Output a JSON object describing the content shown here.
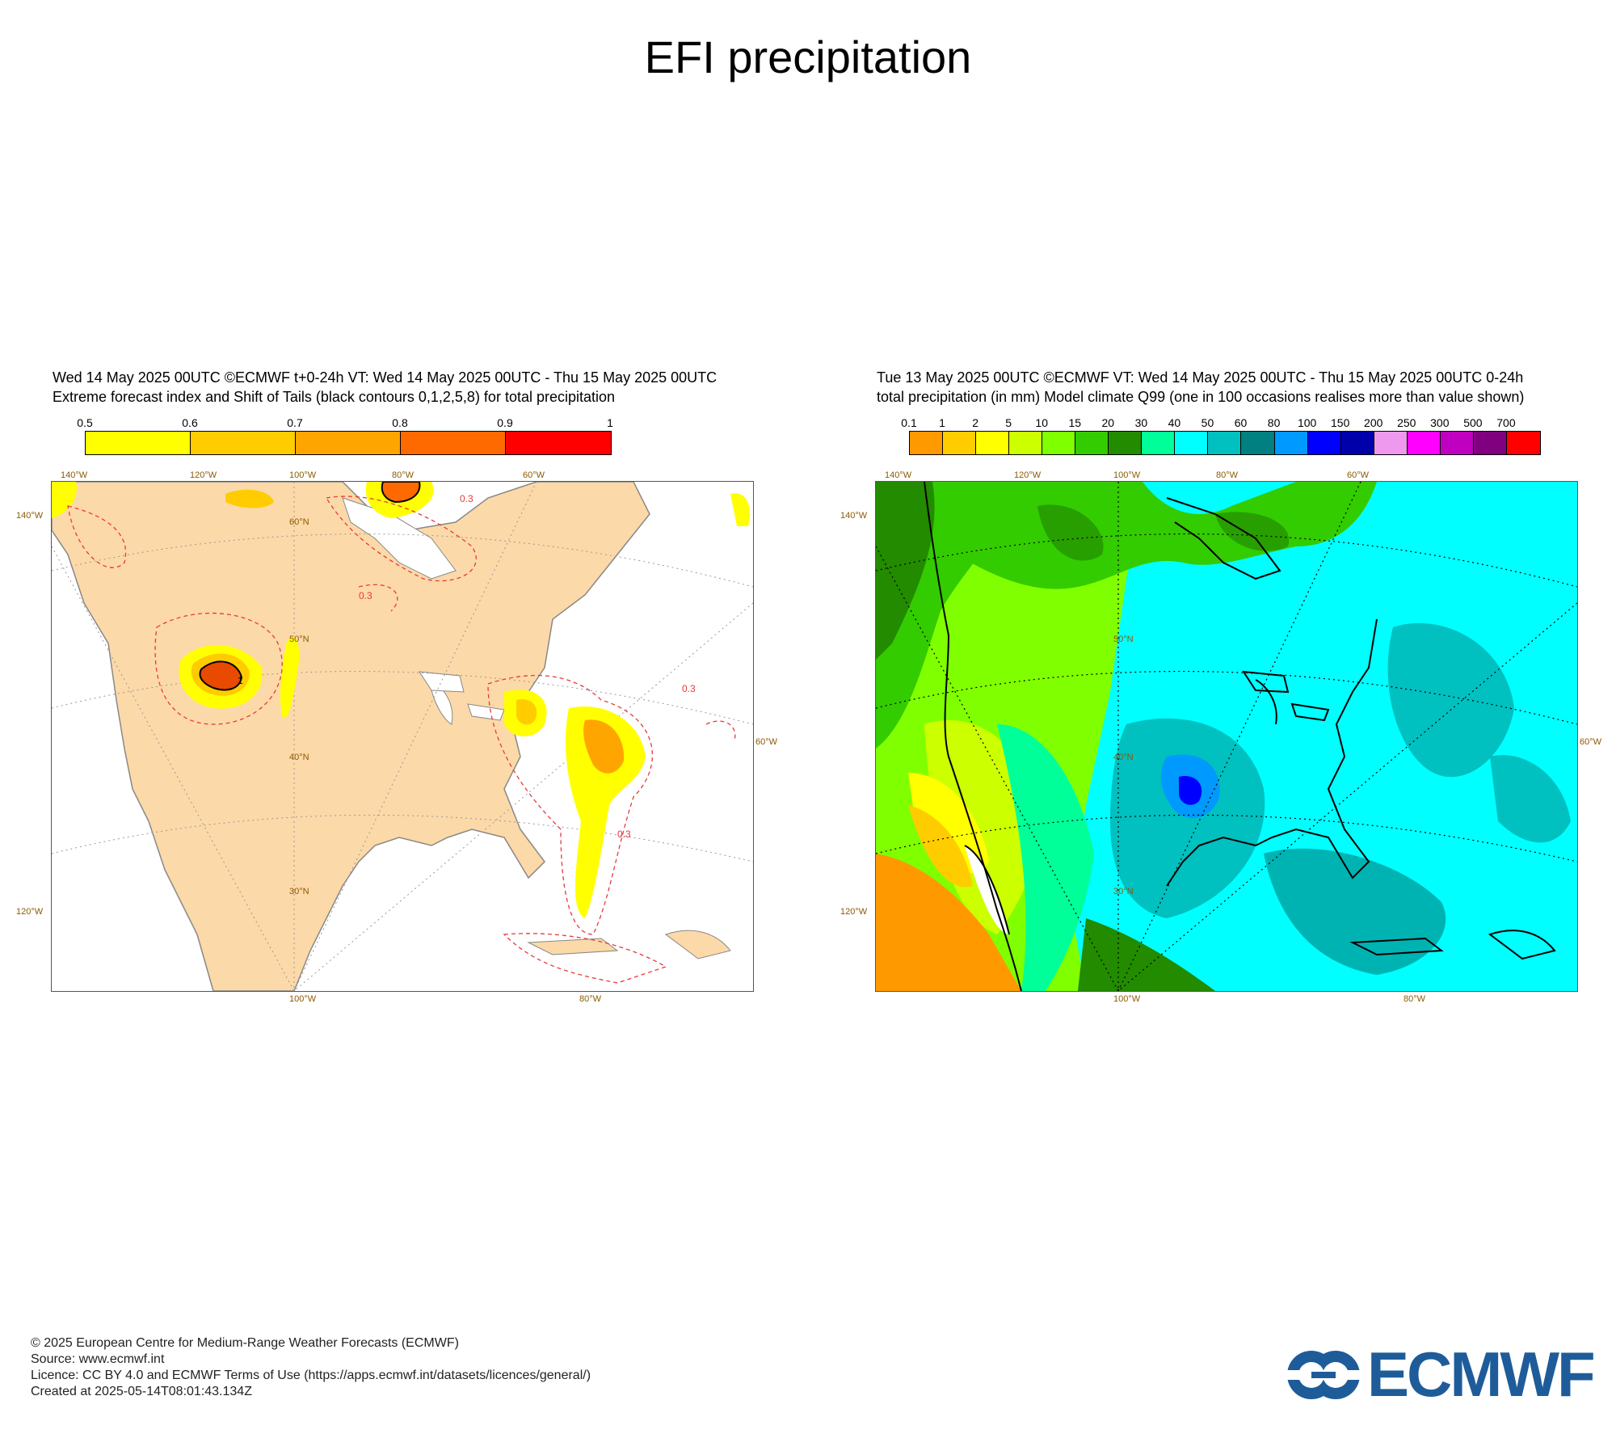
{
  "title": "EFI precipitation",
  "left_panel": {
    "header_line1": "Wed 14 May 2025 00UTC ©ECMWF t+0-24h  VT: Wed 14 May 2025 00UTC - Thu 15 May 2025 00UTC",
    "header_line2": "Extreme forecast index and Shift of Tails (black contours 0,1,2,5,8) for total precipitation",
    "colorbar_ticks": [
      "0.5",
      "0.6",
      "0.7",
      "0.8",
      "0.9",
      "1"
    ],
    "colorbar_colors": [
      "#ffff00",
      "#ffcc00",
      "#ffa500",
      "#ff6a00",
      "#ff0000"
    ],
    "land_color": "#fcd9a8",
    "contour_label": "0.3",
    "contour_label_mark": "1",
    "lon_top": [
      "140°W",
      "120°W",
      "100°W",
      "80°W",
      "60°W"
    ],
    "lon_bottom": [
      "100°W",
      "80°W"
    ],
    "lat_left": [
      "140°W",
      "120°W"
    ],
    "lat_right": [
      "60°W"
    ],
    "lat_inner": [
      "60°N",
      "50°N",
      "40°N",
      "30°N"
    ]
  },
  "right_panel": {
    "header_line1": "Tue 13 May 2025 00UTC ©ECMWF VT: Wed 14 May 2025 00UTC - Thu 15 May 2025 00UTC   0-24h",
    "header_line2": "total precipitation (in mm)  Model climate Q99 (one in 100 occasions realises more than value shown)",
    "colorbar_ticks": [
      "0.1",
      "1",
      "2",
      "5",
      "10",
      "15",
      "20",
      "30",
      "40",
      "50",
      "60",
      "80",
      "100",
      "150",
      "200",
      "250",
      "300",
      "500",
      "700"
    ],
    "colorbar_colors": [
      "#ff9900",
      "#ffcc00",
      "#ffff00",
      "#ccff00",
      "#80ff00",
      "#33cc00",
      "#228b00",
      "#00ff99",
      "#00ffff",
      "#00c0c0",
      "#008080",
      "#0099ff",
      "#0000ff",
      "#0000aa",
      "#ee99ee",
      "#ff00ff",
      "#c000c0",
      "#800080",
      "#ff0000"
    ],
    "lon_top": [
      "140°W",
      "120°W",
      "100°W",
      "80°W",
      "60°W"
    ],
    "lon_bottom": [
      "100°W",
      "80°W"
    ],
    "lat_left": [
      "140°W",
      "120°W"
    ],
    "lat_right": [
      "60°W"
    ],
    "lat_inner": [
      "50°N",
      "40°N",
      "30°N"
    ]
  },
  "footer": {
    "line1": "© 2025 European Centre for Medium-Range Weather Forecasts (ECMWF)",
    "line2": "Source: www.ecmwf.int",
    "line3": "Licence: CC BY 4.0 and ECMWF Terms of Use (https://apps.ecmwf.int/datasets/licences/general/)",
    "line4": "Created at 2025-05-14T08:01:43.134Z"
  },
  "logo": {
    "text": "ECMWF",
    "color": "#1e5c99"
  }
}
